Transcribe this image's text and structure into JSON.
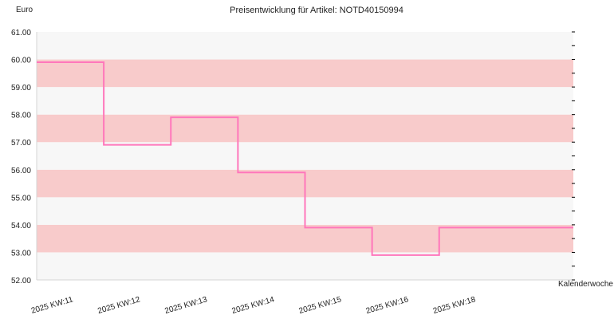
{
  "chart_data": {
    "type": "line",
    "step": true,
    "title": "Preisentwicklung für Artikel: NOTD40150994",
    "ylabel": "Euro",
    "xlabel": "Kalenderwoche",
    "categories": [
      "2025 KW:11",
      "2025 KW:12",
      "2025 KW:13",
      "2025 KW:14",
      "2025 KW:15",
      "2025 KW:16",
      "2025 KW:18"
    ],
    "y_ticks": [
      "52.00",
      "53.00",
      "54.00",
      "55.00",
      "56.00",
      "57.00",
      "58.00",
      "59.00",
      "60.00",
      "61.00"
    ],
    "ylim": [
      52,
      61
    ],
    "series": [
      {
        "values": [
          59.9,
          56.9,
          57.9,
          55.9,
          53.9,
          52.9,
          53.9
        ],
        "color": "#ff77bb"
      }
    ],
    "band_colors": [
      "#f7f7f7",
      "#f8cbcb"
    ],
    "grid": true,
    "legend": "none"
  }
}
